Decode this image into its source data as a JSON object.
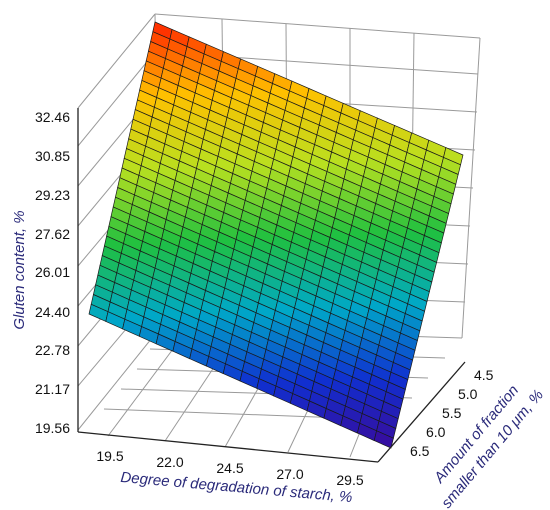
{
  "chart_data": {
    "type": "surface3d",
    "z_axis": {
      "label": "Gluten content, %",
      "ticks": [
        "32.46",
        "30.85",
        "29.23",
        "27.62",
        "26.01",
        "24.40",
        "22.78",
        "21.17",
        "19.56"
      ]
    },
    "x_axis": {
      "label": "Degree of degradation of starch, %",
      "ticks": [
        "19.5",
        "22.0",
        "24.5",
        "27.0",
        "29.5"
      ]
    },
    "y_axis": {
      "label_line1": "Amount of fraction",
      "label_line2": "smaller than 10 μm, %",
      "ticks": [
        "4.5",
        "5.0",
        "5.5",
        "6.0",
        "6.5"
      ]
    },
    "surface": {
      "corners": [
        {
          "x": 19.5,
          "y": 4.5,
          "z": 33.5
        },
        {
          "x": 29.5,
          "y": 4.5,
          "z": 29.0
        },
        {
          "x": 19.5,
          "y": 6.5,
          "z": 24.4
        },
        {
          "x": 29.5,
          "y": 6.5,
          "z": 19.6
        }
      ],
      "grid_rows": 30,
      "grid_cols": 18,
      "colormap": [
        "#3a0a9a",
        "#1030d0",
        "#00a8c8",
        "#20c040",
        "#b8e020",
        "#ffc000",
        "#ff2000"
      ]
    }
  }
}
